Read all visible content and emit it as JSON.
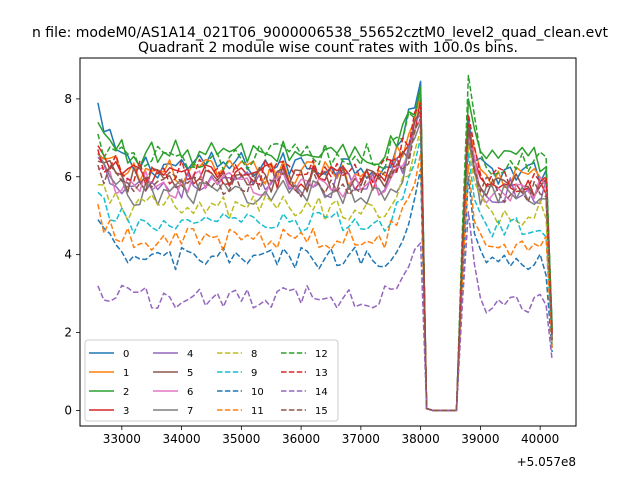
{
  "chart_data": {
    "type": "line",
    "suptitle": "n file: modeM0/AS1A14_021T06_9000006538_55652cztM0_level2_quad_clean.evt",
    "title": "Quadrant 2 module wise count rates with 100.0s bins.",
    "xlabel": "",
    "ylabel": "",
    "x_offset_label": "+5.057e8",
    "xlim": [
      32300,
      40600
    ],
    "ylim": [
      -0.4,
      9.05
    ],
    "xticks": [
      33000,
      34000,
      35000,
      36000,
      37000,
      38000,
      39000,
      40000
    ],
    "yticks": [
      0,
      2,
      4,
      6,
      8
    ],
    "x_start": 32600,
    "x_step": 100,
    "legend": {
      "location": "lower-left",
      "columns": 4
    },
    "series": [
      {
        "name": "0",
        "color": "#1f77b4",
        "dash": "solid",
        "level": 6.3,
        "start": 7.9,
        "peak_left": 8.45,
        "peak_right": 7.5,
        "end": 2.2
      },
      {
        "name": "1",
        "color": "#ff7f0e",
        "dash": "solid",
        "level": 6.1,
        "start": 6.6,
        "peak_left": 8.2,
        "peak_right": 7.2,
        "end": 2.0
      },
      {
        "name": "2",
        "color": "#2ca02c",
        "dash": "solid",
        "level": 6.6,
        "start": 7.4,
        "peak_left": 8.3,
        "peak_right": 8.0,
        "end": 2.1
      },
      {
        "name": "3",
        "color": "#d62728",
        "dash": "solid",
        "level": 6.0,
        "start": 6.8,
        "peak_left": 8.0,
        "peak_right": 7.3,
        "end": 2.0
      },
      {
        "name": "4",
        "color": "#9467bd",
        "dash": "solid",
        "level": 5.8,
        "start": 6.5,
        "peak_left": 7.6,
        "peak_right": 7.1,
        "end": 1.9
      },
      {
        "name": "5",
        "color": "#8c564b",
        "dash": "solid",
        "level": 5.9,
        "start": 6.4,
        "peak_left": 7.7,
        "peak_right": 7.2,
        "end": 1.9
      },
      {
        "name": "6",
        "color": "#e377c2",
        "dash": "solid",
        "level": 5.8,
        "start": 6.2,
        "peak_left": 7.5,
        "peak_right": 7.0,
        "end": 1.9
      },
      {
        "name": "7",
        "color": "#7f7f7f",
        "dash": "solid",
        "level": 5.6,
        "start": 6.6,
        "peak_left": 7.4,
        "peak_right": 6.9,
        "end": 1.8
      },
      {
        "name": "8",
        "color": "#bcbd22",
        "dash": "dashed",
        "level": 5.2,
        "start": 5.8,
        "peak_left": 7.2,
        "peak_right": 6.8,
        "end": 1.7
      },
      {
        "name": "9",
        "color": "#17becf",
        "dash": "dashed",
        "level": 4.8,
        "start": 5.6,
        "peak_left": 7.0,
        "peak_right": 6.6,
        "end": 1.6
      },
      {
        "name": "10",
        "color": "#1f77b4",
        "dash": "dashed",
        "level": 3.9,
        "start": 4.9,
        "peak_left": 6.2,
        "peak_right": 6.0,
        "end": 1.5
      },
      {
        "name": "11",
        "color": "#ff7f0e",
        "dash": "dashed",
        "level": 4.4,
        "start": 5.3,
        "peak_left": 6.6,
        "peak_right": 6.3,
        "end": 1.6
      },
      {
        "name": "12",
        "color": "#2ca02c",
        "dash": "dashed",
        "level": 6.5,
        "start": 7.1,
        "peak_left": 8.3,
        "peak_right": 8.6,
        "end": 2.0
      },
      {
        "name": "13",
        "color": "#d62728",
        "dash": "dashed",
        "level": 6.1,
        "start": 6.7,
        "peak_left": 7.8,
        "peak_right": 7.6,
        "end": 1.9
      },
      {
        "name": "14",
        "color": "#9467bd",
        "dash": "dashed",
        "level": 2.9,
        "start": 3.2,
        "peak_left": 4.3,
        "peak_right": 5.1,
        "end": 1.3
      },
      {
        "name": "15",
        "color": "#8c564b",
        "dash": "dashed",
        "level": 5.8,
        "start": 6.3,
        "peak_left": 7.5,
        "peak_right": 7.3,
        "end": 1.8
      }
    ]
  }
}
